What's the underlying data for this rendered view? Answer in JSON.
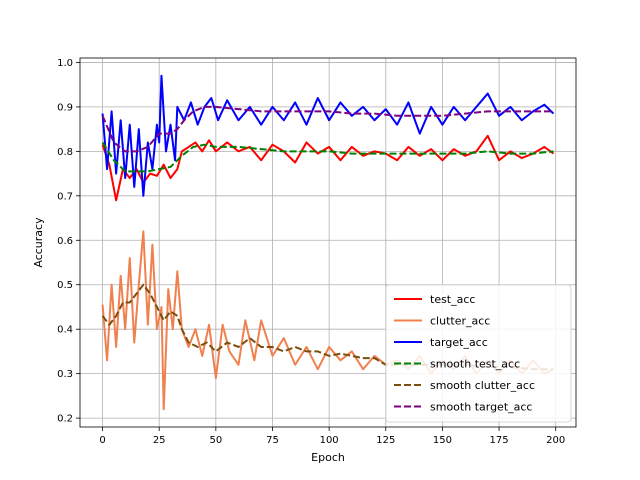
{
  "chart_data": {
    "type": "line",
    "xlabel": "Epoch",
    "ylabel": "Accuracy",
    "xlim": [
      -9.95,
      208.95
    ],
    "ylim": [
      0.18,
      1.01
    ],
    "xticks": [
      0,
      25,
      50,
      75,
      100,
      125,
      150,
      175,
      200
    ],
    "yticks": [
      0.2,
      0.3,
      0.4,
      0.5,
      0.6,
      0.7,
      0.8,
      0.9,
      1.0
    ],
    "ytick_labels": [
      "0.2",
      "0.3",
      "0.4",
      "0.5",
      "0.6",
      "0.7",
      "0.8",
      "0.9",
      "1.0"
    ],
    "grid": true,
    "legend_position": "lower-right",
    "series": [
      {
        "name": "test_acc",
        "color": "#ff0000",
        "dashed": false,
        "points": [
          [
            0,
            0.815
          ],
          [
            3,
            0.77
          ],
          [
            6,
            0.69
          ],
          [
            9,
            0.76
          ],
          [
            12,
            0.74
          ],
          [
            15,
            0.76
          ],
          [
            18,
            0.73
          ],
          [
            21,
            0.75
          ],
          [
            24,
            0.745
          ],
          [
            27,
            0.77
          ],
          [
            30,
            0.74
          ],
          [
            33,
            0.76
          ],
          [
            35,
            0.8
          ],
          [
            38,
            0.81
          ],
          [
            41,
            0.82
          ],
          [
            44,
            0.8
          ],
          [
            47,
            0.825
          ],
          [
            50,
            0.8
          ],
          [
            55,
            0.82
          ],
          [
            60,
            0.8
          ],
          [
            65,
            0.81
          ],
          [
            70,
            0.78
          ],
          [
            75,
            0.815
          ],
          [
            80,
            0.8
          ],
          [
            85,
            0.775
          ],
          [
            90,
            0.82
          ],
          [
            95,
            0.795
          ],
          [
            100,
            0.81
          ],
          [
            105,
            0.78
          ],
          [
            110,
            0.81
          ],
          [
            115,
            0.79
          ],
          [
            120,
            0.8
          ],
          [
            125,
            0.795
          ],
          [
            130,
            0.78
          ],
          [
            135,
            0.81
          ],
          [
            140,
            0.79
          ],
          [
            145,
            0.805
          ],
          [
            150,
            0.78
          ],
          [
            155,
            0.805
          ],
          [
            160,
            0.79
          ],
          [
            165,
            0.8
          ],
          [
            170,
            0.835
          ],
          [
            175,
            0.78
          ],
          [
            180,
            0.8
          ],
          [
            185,
            0.785
          ],
          [
            190,
            0.795
          ],
          [
            195,
            0.81
          ],
          [
            199,
            0.795
          ]
        ]
      },
      {
        "name": "clutter_acc",
        "color": "#f0804e",
        "dashed": false,
        "points": [
          [
            0,
            0.455
          ],
          [
            2,
            0.33
          ],
          [
            4,
            0.5
          ],
          [
            6,
            0.36
          ],
          [
            8,
            0.52
          ],
          [
            10,
            0.4
          ],
          [
            12,
            0.56
          ],
          [
            14,
            0.37
          ],
          [
            16,
            0.5
          ],
          [
            18,
            0.62
          ],
          [
            20,
            0.41
          ],
          [
            22,
            0.59
          ],
          [
            24,
            0.4
          ],
          [
            26,
            0.45
          ],
          [
            27,
            0.22
          ],
          [
            29,
            0.49
          ],
          [
            31,
            0.4
          ],
          [
            33,
            0.53
          ],
          [
            35,
            0.4
          ],
          [
            38,
            0.36
          ],
          [
            41,
            0.4
          ],
          [
            44,
            0.34
          ],
          [
            47,
            0.41
          ],
          [
            50,
            0.29
          ],
          [
            53,
            0.41
          ],
          [
            56,
            0.35
          ],
          [
            60,
            0.32
          ],
          [
            63,
            0.42
          ],
          [
            67,
            0.33
          ],
          [
            70,
            0.42
          ],
          [
            75,
            0.34
          ],
          [
            80,
            0.38
          ],
          [
            85,
            0.32
          ],
          [
            90,
            0.36
          ],
          [
            95,
            0.31
          ],
          [
            100,
            0.36
          ],
          [
            105,
            0.33
          ],
          [
            110,
            0.35
          ],
          [
            115,
            0.31
          ],
          [
            120,
            0.34
          ],
          [
            125,
            0.32
          ],
          [
            130,
            0.33
          ],
          [
            135,
            0.31
          ],
          [
            140,
            0.34
          ],
          [
            145,
            0.3
          ],
          [
            150,
            0.33
          ],
          [
            155,
            0.31
          ],
          [
            160,
            0.34
          ],
          [
            165,
            0.3
          ],
          [
            170,
            0.33
          ],
          [
            175,
            0.3
          ],
          [
            180,
            0.33
          ],
          [
            185,
            0.3
          ],
          [
            190,
            0.33
          ],
          [
            195,
            0.3
          ],
          [
            199,
            0.31
          ]
        ]
      },
      {
        "name": "target_acc",
        "color": "#0000ff",
        "dashed": false,
        "points": [
          [
            0,
            0.885
          ],
          [
            2,
            0.76
          ],
          [
            4,
            0.89
          ],
          [
            6,
            0.75
          ],
          [
            8,
            0.87
          ],
          [
            10,
            0.74
          ],
          [
            12,
            0.86
          ],
          [
            14,
            0.72
          ],
          [
            16,
            0.85
          ],
          [
            18,
            0.7
          ],
          [
            20,
            0.82
          ],
          [
            22,
            0.76
          ],
          [
            24,
            0.86
          ],
          [
            25,
            0.82
          ],
          [
            26,
            0.97
          ],
          [
            28,
            0.8
          ],
          [
            30,
            0.86
          ],
          [
            32,
            0.78
          ],
          [
            33,
            0.9
          ],
          [
            36,
            0.87
          ],
          [
            39,
            0.91
          ],
          [
            42,
            0.86
          ],
          [
            45,
            0.9
          ],
          [
            48,
            0.92
          ],
          [
            51,
            0.87
          ],
          [
            55,
            0.915
          ],
          [
            60,
            0.87
          ],
          [
            65,
            0.9
          ],
          [
            70,
            0.86
          ],
          [
            75,
            0.9
          ],
          [
            80,
            0.87
          ],
          [
            85,
            0.91
          ],
          [
            90,
            0.86
          ],
          [
            95,
            0.92
          ],
          [
            100,
            0.87
          ],
          [
            105,
            0.91
          ],
          [
            110,
            0.88
          ],
          [
            115,
            0.9
          ],
          [
            120,
            0.87
          ],
          [
            125,
            0.895
          ],
          [
            130,
            0.86
          ],
          [
            135,
            0.91
          ],
          [
            140,
            0.84
          ],
          [
            145,
            0.9
          ],
          [
            150,
            0.86
          ],
          [
            155,
            0.9
          ],
          [
            160,
            0.87
          ],
          [
            165,
            0.9
          ],
          [
            170,
            0.93
          ],
          [
            175,
            0.88
          ],
          [
            180,
            0.9
          ],
          [
            185,
            0.87
          ],
          [
            190,
            0.89
          ],
          [
            195,
            0.905
          ],
          [
            199,
            0.885
          ]
        ]
      },
      {
        "name": "smooth test_acc",
        "color": "#008000",
        "dashed": true,
        "points": [
          [
            0,
            0.82
          ],
          [
            5,
            0.78
          ],
          [
            10,
            0.755
          ],
          [
            15,
            0.755
          ],
          [
            20,
            0.755
          ],
          [
            25,
            0.76
          ],
          [
            30,
            0.765
          ],
          [
            35,
            0.79
          ],
          [
            40,
            0.81
          ],
          [
            45,
            0.815
          ],
          [
            50,
            0.81
          ],
          [
            60,
            0.81
          ],
          [
            70,
            0.805
          ],
          [
            80,
            0.8
          ],
          [
            90,
            0.8
          ],
          [
            100,
            0.8
          ],
          [
            110,
            0.795
          ],
          [
            120,
            0.795
          ],
          [
            130,
            0.795
          ],
          [
            140,
            0.795
          ],
          [
            150,
            0.795
          ],
          [
            160,
            0.795
          ],
          [
            170,
            0.8
          ],
          [
            180,
            0.795
          ],
          [
            190,
            0.795
          ],
          [
            199,
            0.8
          ]
        ]
      },
      {
        "name": "smooth clutter_acc",
        "color": "#7a4f0c",
        "dashed": true,
        "points": [
          [
            0,
            0.43
          ],
          [
            3,
            0.41
          ],
          [
            6,
            0.43
          ],
          [
            9,
            0.46
          ],
          [
            12,
            0.46
          ],
          [
            15,
            0.48
          ],
          [
            18,
            0.5
          ],
          [
            21,
            0.48
          ],
          [
            24,
            0.45
          ],
          [
            27,
            0.42
          ],
          [
            30,
            0.44
          ],
          [
            33,
            0.43
          ],
          [
            35,
            0.4
          ],
          [
            38,
            0.37
          ],
          [
            42,
            0.36
          ],
          [
            46,
            0.37
          ],
          [
            50,
            0.35
          ],
          [
            55,
            0.37
          ],
          [
            60,
            0.36
          ],
          [
            65,
            0.38
          ],
          [
            70,
            0.36
          ],
          [
            75,
            0.36
          ],
          [
            80,
            0.35
          ],
          [
            85,
            0.36
          ],
          [
            90,
            0.35
          ],
          [
            95,
            0.35
          ],
          [
            100,
            0.34
          ],
          [
            105,
            0.345
          ],
          [
            110,
            0.34
          ],
          [
            115,
            0.335
          ],
          [
            120,
            0.335
          ],
          [
            125,
            0.32
          ],
          [
            130,
            0.32
          ],
          [
            140,
            0.32
          ],
          [
            150,
            0.32
          ],
          [
            160,
            0.32
          ],
          [
            170,
            0.315
          ],
          [
            180,
            0.315
          ],
          [
            190,
            0.31
          ],
          [
            199,
            0.31
          ]
        ]
      },
      {
        "name": "smooth target_acc",
        "color": "#800080",
        "dashed": true,
        "points": [
          [
            0,
            0.88
          ],
          [
            5,
            0.82
          ],
          [
            10,
            0.8
          ],
          [
            15,
            0.8
          ],
          [
            20,
            0.81
          ],
          [
            25,
            0.84
          ],
          [
            30,
            0.84
          ],
          [
            33,
            0.85
          ],
          [
            36,
            0.87
          ],
          [
            40,
            0.89
          ],
          [
            45,
            0.9
          ],
          [
            50,
            0.9
          ],
          [
            60,
            0.895
          ],
          [
            70,
            0.89
          ],
          [
            80,
            0.89
          ],
          [
            90,
            0.89
          ],
          [
            100,
            0.89
          ],
          [
            110,
            0.885
          ],
          [
            120,
            0.885
          ],
          [
            130,
            0.88
          ],
          [
            140,
            0.88
          ],
          [
            150,
            0.88
          ],
          [
            160,
            0.885
          ],
          [
            170,
            0.89
          ],
          [
            180,
            0.89
          ],
          [
            190,
            0.89
          ],
          [
            199,
            0.89
          ]
        ]
      }
    ]
  }
}
